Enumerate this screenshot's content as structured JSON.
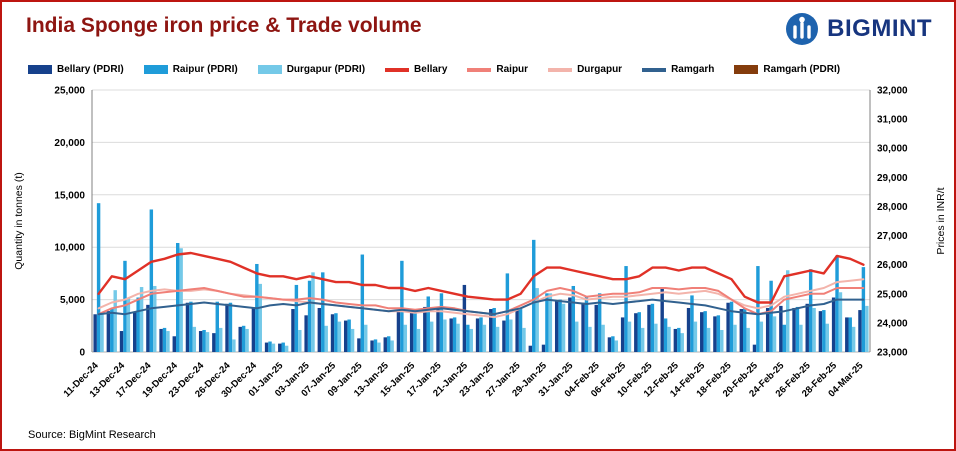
{
  "page": {
    "title": "India Sponge iron price & Trade volume",
    "brand": "BIGMINT",
    "source": "Source: BigMint Research",
    "border_color": "#bd1510",
    "title_color": "#8e1511",
    "brand_color": "#17357f"
  },
  "legend": [
    {
      "label": "Bellary (PDRI)",
      "color": "#16418c",
      "shape": "bar"
    },
    {
      "label": "Raipur (PDRI)",
      "color": "#1f9cd9",
      "shape": "bar"
    },
    {
      "label": "Durgapur (PDRI)",
      "color": "#74c9e8",
      "shape": "bar"
    },
    {
      "label": "Bellary",
      "color": "#e03127",
      "shape": "line"
    },
    {
      "label": "Raipur",
      "color": "#f08078",
      "shape": "line"
    },
    {
      "label": "Durgapur",
      "color": "#f3b4ab",
      "shape": "line"
    },
    {
      "label": "Ramgarh",
      "color": "#31618f",
      "shape": "line"
    },
    {
      "label": "Ramgarh (PDRI)",
      "color": "#843c0c",
      "shape": "bar"
    }
  ],
  "chart_data": {
    "type": "combo",
    "grid": true,
    "legend_position": "top",
    "x_tick_step": 2,
    "axes": {
      "left": {
        "title": "Quantity in tonnes (t)",
        "min": 0,
        "max": 25000,
        "step": 5000
      },
      "right": {
        "title": "Prices in INR/t",
        "min": 23000,
        "max": 32000,
        "step": 1000
      }
    },
    "categories": [
      "11-Dec-24",
      "12-Dec-24",
      "13-Dec-24",
      "16-Dec-24",
      "17-Dec-24",
      "18-Dec-24",
      "19-Dec-24",
      "20-Dec-24",
      "23-Dec-24",
      "24-Dec-24",
      "26-Dec-24",
      "27-Dec-24",
      "30-Dec-24",
      "31-Dec-24",
      "01-Jan-25",
      "02-Jan-25",
      "03-Jan-25",
      "06-Jan-25",
      "07-Jan-25",
      "08-Jan-25",
      "09-Jan-25",
      "10-Jan-25",
      "13-Jan-25",
      "14-Jan-25",
      "15-Jan-25",
      "16-Jan-25",
      "17-Jan-25",
      "20-Jan-25",
      "21-Jan-25",
      "22-Jan-25",
      "23-Jan-25",
      "24-Jan-25",
      "27-Jan-25",
      "28-Jan-25",
      "29-Jan-25",
      "30-Jan-25",
      "31-Jan-25",
      "03-Feb-25",
      "04-Feb-25",
      "05-Feb-25",
      "06-Feb-25",
      "07-Feb-25",
      "10-Feb-25",
      "11-Feb-25",
      "12-Feb-25",
      "13-Feb-25",
      "14-Feb-25",
      "17-Feb-25",
      "18-Feb-25",
      "19-Feb-25",
      "20-Feb-25",
      "21-Feb-25",
      "24-Feb-25",
      "25-Feb-25",
      "26-Feb-25",
      "27-Feb-25",
      "28-Feb-25",
      "03-Mar-25",
      "04-Mar-25"
    ],
    "series": [
      {
        "name": "Bellary (PDRI)",
        "kind": "bar",
        "axis": "left",
        "color": "#16418c",
        "values": [
          3600,
          3900,
          2000,
          3800,
          4500,
          2200,
          1500,
          4700,
          2000,
          1800,
          4600,
          2400,
          4200,
          900,
          800,
          4100,
          3500,
          4200,
          3600,
          3000,
          1300,
          1100,
          1400,
          4000,
          3900,
          4300,
          4200,
          3200,
          6400,
          3200,
          4100,
          3000,
          4000,
          600,
          700,
          4900,
          5200,
          4700,
          4500,
          1400,
          3300,
          3700,
          4500,
          6100,
          2200,
          4200,
          3800,
          3400,
          4700,
          4100,
          700,
          4200,
          4400,
          4200,
          4600,
          3900,
          5200,
          3300,
          4000
        ]
      },
      {
        "name": "Raipur (PDRI)",
        "kind": "bar",
        "axis": "left",
        "color": "#1f9cd9",
        "values": [
          14200,
          4100,
          8700,
          5200,
          13600,
          2300,
          10400,
          4800,
          2100,
          4800,
          4700,
          2500,
          8400,
          1000,
          900,
          6400,
          6800,
          7600,
          3700,
          3100,
          9300,
          1200,
          1500,
          8700,
          4000,
          5300,
          5600,
          3300,
          2600,
          3300,
          4200,
          7500,
          4100,
          10700,
          5600,
          5000,
          6300,
          5300,
          5600,
          1500,
          8200,
          3800,
          4600,
          3200,
          2300,
          5400,
          3900,
          3500,
          4800,
          4200,
          8200,
          6800,
          2600,
          4300,
          7900,
          4000,
          9200,
          3300,
          8100
        ]
      },
      {
        "name": "Durgapur (PDRI)",
        "kind": "bar",
        "axis": "left",
        "color": "#74c9e8",
        "values": [
          3800,
          5900,
          5200,
          6200,
          6300,
          2000,
          9900,
          2400,
          1900,
          2300,
          1200,
          2200,
          6500,
          800,
          600,
          2100,
          7600,
          2500,
          2900,
          2200,
          2600,
          900,
          1100,
          2600,
          2200,
          2900,
          3100,
          2700,
          2200,
          2600,
          2400,
          3100,
          2300,
          6100,
          5600,
          4600,
          2900,
          2400,
          2600,
          1100,
          2900,
          2300,
          2700,
          2400,
          1800,
          2900,
          2300,
          2100,
          2600,
          2300,
          2900,
          3400,
          7800,
          2600,
          4200,
          2700,
          5700,
          2400,
          4400
        ]
      },
      {
        "name": "Ramgarh (PDRI)",
        "kind": "bar",
        "axis": "left",
        "color": "#843c0c",
        "values": [
          0,
          0,
          0,
          0,
          0,
          0,
          0,
          0,
          0,
          0,
          0,
          0,
          0,
          0,
          0,
          0,
          0,
          0,
          0,
          0,
          0,
          0,
          0,
          0,
          0,
          0,
          0,
          0,
          0,
          0,
          0,
          0,
          0,
          0,
          0,
          0,
          0,
          0,
          0,
          0,
          0,
          0,
          0,
          0,
          0,
          0,
          0,
          0,
          0,
          0,
          0,
          0,
          0,
          0,
          0,
          0,
          0,
          0,
          0
        ]
      },
      {
        "name": "Durgapur",
        "kind": "line",
        "axis": "right",
        "color": "#f3b4ab",
        "values": [
          24500,
          24700,
          24800,
          25000,
          25100,
          25150,
          25100,
          25100,
          25150,
          25100,
          25000,
          24950,
          24900,
          24850,
          24800,
          24750,
          24700,
          24650,
          24600,
          24550,
          24500,
          24450,
          24400,
          24400,
          24350,
          24400,
          24400,
          24350,
          24300,
          24250,
          24200,
          24300,
          24500,
          24700,
          24900,
          25000,
          24950,
          24800,
          24850,
          24900,
          24900,
          24950,
          25000,
          25050,
          25000,
          25050,
          25100,
          25000,
          24800,
          24600,
          24500,
          24600,
          24900,
          25000,
          25100,
          25200,
          25400,
          25450,
          25500
        ]
      },
      {
        "name": "Raipur",
        "kind": "line",
        "axis": "right",
        "color": "#f08078",
        "values": [
          24300,
          24500,
          24600,
          24800,
          25000,
          25050,
          25100,
          25150,
          25200,
          25100,
          25000,
          24900,
          24900,
          24850,
          24800,
          24800,
          24850,
          24800,
          24700,
          24650,
          24600,
          24600,
          24500,
          24500,
          24450,
          24500,
          24550,
          24500,
          24400,
          24350,
          24300,
          24400,
          24600,
          24800,
          25100,
          25200,
          25100,
          24900,
          24950,
          25000,
          25000,
          25050,
          25200,
          25200,
          25150,
          25200,
          25200,
          25100,
          24800,
          24500,
          24300,
          24400,
          24800,
          24900,
          25000,
          25000,
          25200,
          25200,
          25200
        ]
      },
      {
        "name": "Ramgarh",
        "kind": "line",
        "axis": "right",
        "color": "#31618f",
        "values": [
          24300,
          24350,
          24300,
          24400,
          24500,
          24550,
          24600,
          24650,
          24700,
          24650,
          24600,
          24550,
          24500,
          24600,
          24650,
          24600,
          24700,
          24650,
          24600,
          24550,
          24500,
          24450,
          24400,
          24450,
          24400,
          24450,
          24500,
          24450,
          24400,
          24350,
          24300,
          24400,
          24500,
          24700,
          24800,
          24750,
          24700,
          24650,
          24700,
          24650,
          24700,
          24750,
          24800,
          24750,
          24700,
          24650,
          24600,
          24500,
          24400,
          24350,
          24300,
          24350,
          24400,
          24500,
          24600,
          24650,
          24800,
          24800,
          24800
        ]
      },
      {
        "name": "Bellary",
        "kind": "line",
        "axis": "right",
        "color": "#e03127",
        "values": [
          25000,
          25600,
          25500,
          25800,
          26100,
          26200,
          26350,
          26400,
          26300,
          26200,
          26100,
          25900,
          25700,
          25600,
          25600,
          25500,
          25600,
          25500,
          25400,
          25400,
          25300,
          25300,
          25200,
          25200,
          25100,
          25200,
          25100,
          25000,
          24900,
          24850,
          24800,
          24800,
          25000,
          25600,
          25900,
          25900,
          25800,
          25700,
          25600,
          25500,
          25500,
          25600,
          25900,
          25900,
          25800,
          25900,
          25900,
          25700,
          25500,
          24900,
          24700,
          24700,
          25600,
          25700,
          25800,
          25700,
          26300,
          26200,
          26000
        ]
      }
    ]
  }
}
